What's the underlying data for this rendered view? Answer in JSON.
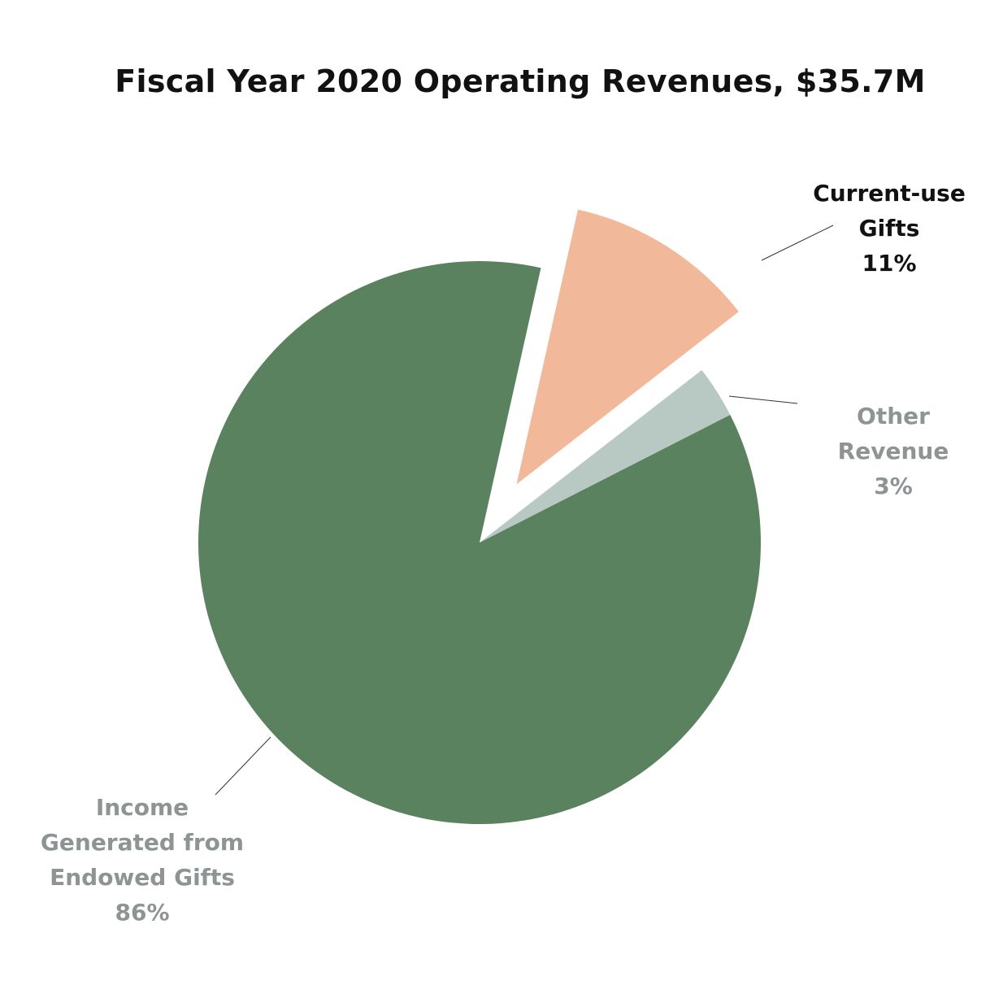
{
  "chart_data": {
    "type": "pie",
    "title": "Fiscal Year 2020 Operating Revenues, $35.7M",
    "slices": [
      {
        "label": "Income Generated from Endowed Gifts",
        "lines": [
          "Income",
          "Generated from",
          "Endowed Gifts"
        ],
        "value": 86,
        "value_label": "86%",
        "color": "#5a825e",
        "label_color": "#8e9494",
        "exploded": false
      },
      {
        "label": "Current-use Gifts",
        "lines": [
          "Current-use",
          "Gifts"
        ],
        "value": 11,
        "value_label": "11%",
        "color": "#f2b89a",
        "label_color": "#111111",
        "exploded": true
      },
      {
        "label": "Other Revenue",
        "lines": [
          "Other",
          "Revenue"
        ],
        "value": 3,
        "value_label": "3%",
        "color": "#b8c9c3",
        "label_color": "#8e9494",
        "exploded": false
      }
    ]
  }
}
